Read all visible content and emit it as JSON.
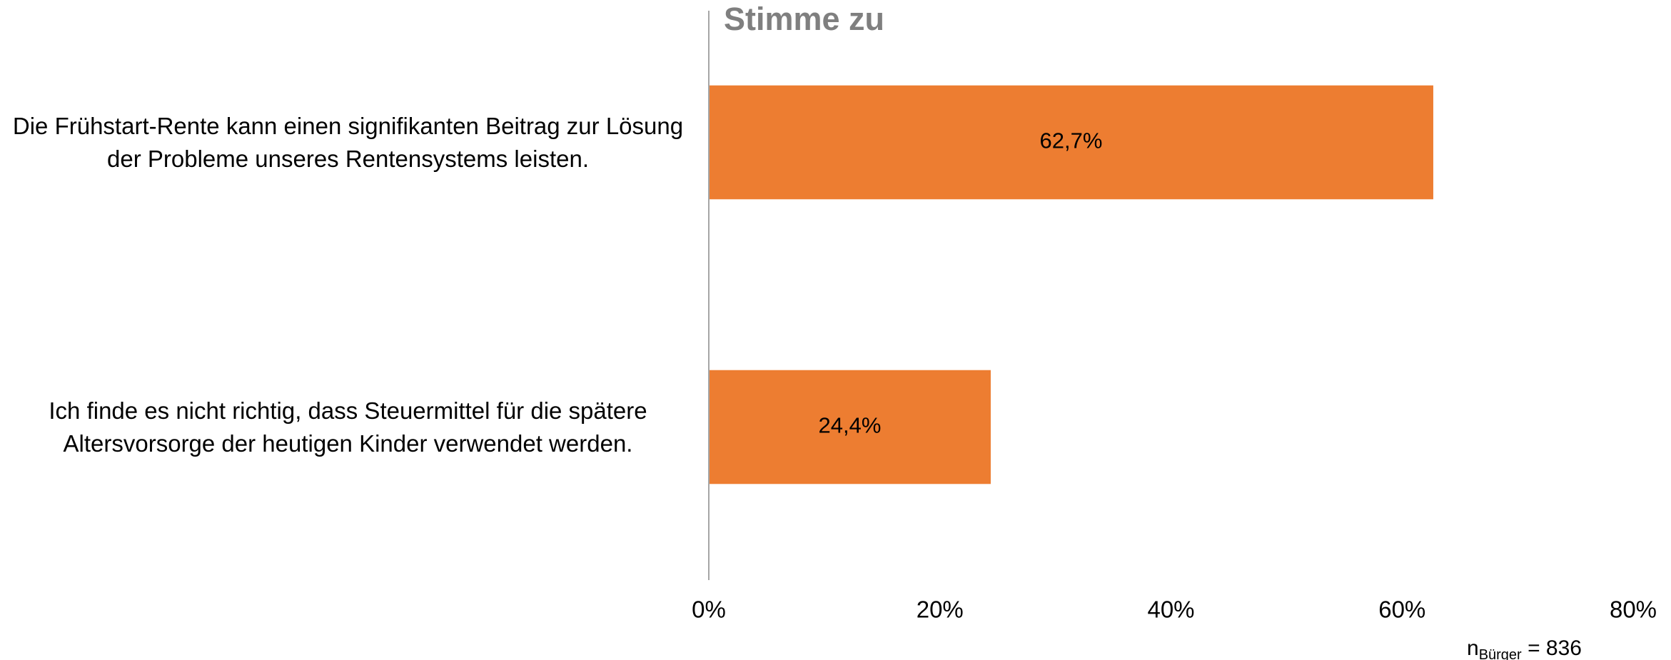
{
  "chart_data": {
    "type": "barh",
    "title": "Stimme zu",
    "categories": [
      "Die Frühstart-Rente kann einen signifikanten Beitrag zur Lösung der Probleme unseres Rentensystems leisten.",
      "Ich finde es nicht richtig, dass Steuermittel für die spätere Altersvorsorge der heutigen Kinder verwendet werden."
    ],
    "values": [
      62.7,
      24.4
    ],
    "value_labels": [
      "62,7%",
      "24,4%"
    ],
    "color": "#ed7d31",
    "xlim": [
      0,
      80
    ],
    "xticks": [
      {
        "value": 0,
        "label": "0%"
      },
      {
        "value": 20,
        "label": "20%"
      },
      {
        "value": 40,
        "label": "40%"
      },
      {
        "value": 60,
        "label": "60%"
      },
      {
        "value": 80,
        "label": "80%"
      }
    ],
    "grid": false,
    "footnote": {
      "n": "n",
      "subscript": "Bürger",
      "text": "= 836"
    }
  }
}
